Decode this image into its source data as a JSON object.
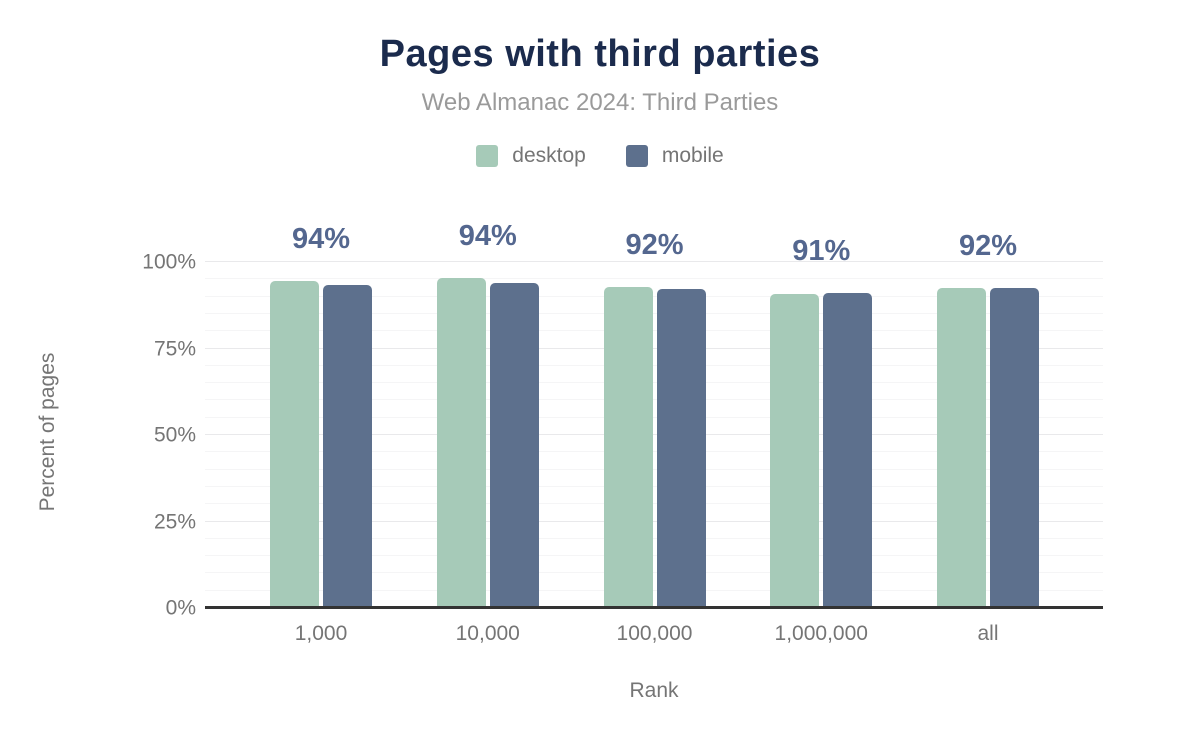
{
  "title": "Pages with third parties",
  "subtitle": "Web Almanac 2024: Third Parties",
  "colors": {
    "title": "#1b2b4d",
    "subtitle": "#9a9a9a",
    "axis_text": "#757575",
    "bar_label": "#54678f",
    "axis_line": "#333333",
    "grid_minor": "#f5f5f6",
    "grid_major": "#e9e9eb",
    "desktop": "#a6cab8",
    "mobile": "#5d708d"
  },
  "chart_data": {
    "type": "bar",
    "categories": [
      "1,000",
      "10,000",
      "100,000",
      "1,000,000",
      "all"
    ],
    "series": [
      {
        "name": "desktop",
        "color": "#a6cab8",
        "values": [
          94.4,
          95.3,
          92.9,
          90.9,
          92.4
        ]
      },
      {
        "name": "mobile",
        "color": "#5d708d",
        "values": [
          93.4,
          94.0,
          92.2,
          91.1,
          92.5
        ]
      }
    ],
    "bar_labels": [
      "94%",
      "94%",
      "92%",
      "91%",
      "92%"
    ],
    "title": "Pages with third parties",
    "subtitle": "Web Almanac 2024: Third Parties",
    "xlabel": "Rank",
    "ylabel": "Percent of pages",
    "ylim": [
      0,
      100
    ],
    "yticks": [
      {
        "pct": 0,
        "label": "0%"
      },
      {
        "pct": 25,
        "label": "25%"
      },
      {
        "pct": 50,
        "label": "50%"
      },
      {
        "pct": 75,
        "label": "75%"
      },
      {
        "pct": 100,
        "label": "100%"
      }
    ],
    "grid": {
      "minor_step": 5,
      "major_step": 25,
      "grid_on": true
    },
    "legend_position": "top"
  }
}
